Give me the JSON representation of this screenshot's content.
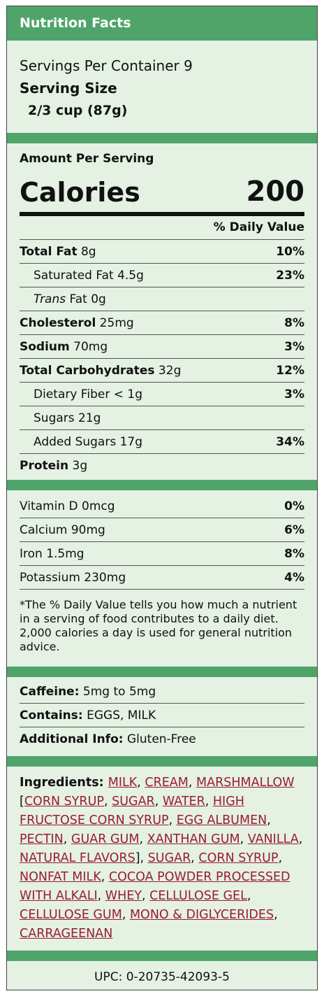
{
  "header": {
    "title": "Nutrition Facts"
  },
  "servings": {
    "per_container": "Servings Per Container 9",
    "size_label": "Serving Size",
    "size_value": "2/3 cup (87g)"
  },
  "amount": {
    "label": "Amount Per Serving",
    "calories_label": "Calories",
    "calories_value": "200",
    "dv_header": "% Daily Value"
  },
  "nutrients": [
    {
      "label": "Total Fat",
      "amount": " 8g",
      "dv": "10%",
      "bold": true,
      "indent": false,
      "italic_prefix": ""
    },
    {
      "label": "Saturated Fat",
      "amount": " 4.5g",
      "dv": "23%",
      "bold": false,
      "indent": true,
      "italic_prefix": ""
    },
    {
      "label": " Fat",
      "amount": " 0g",
      "dv": "",
      "bold": false,
      "indent": true,
      "italic_prefix": "Trans"
    },
    {
      "label": "Cholesterol",
      "amount": " 25mg",
      "dv": "8%",
      "bold": true,
      "indent": false,
      "italic_prefix": ""
    },
    {
      "label": "Sodium",
      "amount": " 70mg",
      "dv": "3%",
      "bold": true,
      "indent": false,
      "italic_prefix": ""
    },
    {
      "label": "Total Carbohydrates",
      "amount": " 32g",
      "dv": "12%",
      "bold": true,
      "indent": false,
      "italic_prefix": ""
    },
    {
      "label": "Dietary Fiber",
      "amount": " < 1g",
      "dv": "3%",
      "bold": false,
      "indent": true,
      "italic_prefix": ""
    },
    {
      "label": "Sugars",
      "amount": " 21g",
      "dv": "",
      "bold": false,
      "indent": true,
      "italic_prefix": ""
    },
    {
      "label": "Added Sugars",
      "amount": " 17g",
      "dv": "34%",
      "bold": false,
      "indent": true,
      "italic_prefix": ""
    },
    {
      "label": "Protein",
      "amount": " 3g",
      "dv": "",
      "bold": true,
      "indent": false,
      "italic_prefix": ""
    }
  ],
  "vitamins": [
    {
      "label": "Vitamin D 0mcg",
      "dv": "0%"
    },
    {
      "label": "Calcium 90mg",
      "dv": "6%"
    },
    {
      "label": "Iron 1.5mg",
      "dv": "8%"
    },
    {
      "label": "Potassium 230mg",
      "dv": "4%"
    }
  ],
  "footnote": "*The % Daily Value tells you how much a nutrient in a serving of food contributes to a daily diet. 2,000 calories a day is used for general nutrition advice.",
  "extra": [
    {
      "label": "Caffeine:",
      "value": " 5mg to 5mg"
    },
    {
      "label": "Contains:",
      "value": " EGGS, MILK"
    },
    {
      "label": "Additional Info:",
      "value": " Gluten-Free"
    }
  ],
  "ingredients": {
    "label": "Ingredients: ",
    "items": [
      {
        "text": "MILK",
        "link": true
      },
      {
        "text": ", ",
        "link": false
      },
      {
        "text": "CREAM",
        "link": true
      },
      {
        "text": ", ",
        "link": false
      },
      {
        "text": "MARSHMALLOW",
        "link": true
      },
      {
        "text": " [",
        "link": false
      },
      {
        "text": "CORN SYRUP",
        "link": true
      },
      {
        "text": ", ",
        "link": false
      },
      {
        "text": "SUGAR",
        "link": true
      },
      {
        "text": ", ",
        "link": false
      },
      {
        "text": "WATER",
        "link": true
      },
      {
        "text": ", ",
        "link": false
      },
      {
        "text": "HIGH FRUCTOSE CORN SYRUP",
        "link": true
      },
      {
        "text": ", ",
        "link": false
      },
      {
        "text": "EGG ALBUMEN",
        "link": true
      },
      {
        "text": ", ",
        "link": false
      },
      {
        "text": "PECTIN",
        "link": true
      },
      {
        "text": ", ",
        "link": false
      },
      {
        "text": "GUAR GUM",
        "link": true
      },
      {
        "text": ", ",
        "link": false
      },
      {
        "text": "XANTHAN GUM",
        "link": true
      },
      {
        "text": ", ",
        "link": false
      },
      {
        "text": "VANILLA",
        "link": true
      },
      {
        "text": ", ",
        "link": false
      },
      {
        "text": "NATURAL FLAVORS",
        "link": true
      },
      {
        "text": "], ",
        "link": false
      },
      {
        "text": "SUGAR",
        "link": true
      },
      {
        "text": ", ",
        "link": false
      },
      {
        "text": "CORN SYRUP",
        "link": true
      },
      {
        "text": ", ",
        "link": false
      },
      {
        "text": "NONFAT MILK",
        "link": true
      },
      {
        "text": ", ",
        "link": false
      },
      {
        "text": "COCOA POWDER PROCESSED WITH ALKALI",
        "link": true
      },
      {
        "text": ", ",
        "link": false
      },
      {
        "text": "WHEY",
        "link": true
      },
      {
        "text": ", ",
        "link": false
      },
      {
        "text": "CELLULOSE GEL",
        "link": true
      },
      {
        "text": ", ",
        "link": false
      },
      {
        "text": "CELLULOSE GUM",
        "link": true
      },
      {
        "text": ", ",
        "link": false
      },
      {
        "text": "MONO & DIGLYCERIDES",
        "link": true
      },
      {
        "text": ", ",
        "link": false
      },
      {
        "text": "CARRAGEENAN",
        "link": true
      }
    ]
  },
  "upc": "UPC: 0-20735-42093-5",
  "colors": {
    "accent": "#4fa46a",
    "panel": "#e4f1e3",
    "link": "#9b1c30"
  }
}
